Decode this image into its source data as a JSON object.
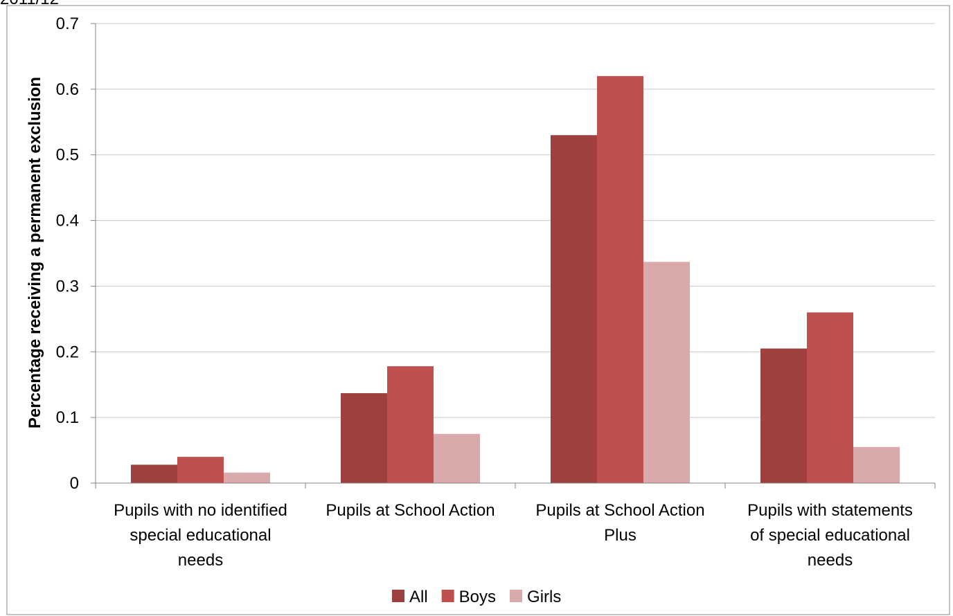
{
  "chart_data": {
    "type": "bar",
    "title": "2011/12",
    "xlabel": "",
    "ylabel": "Percentage receiving a permanent exclusion",
    "ylim": [
      0,
      0.7
    ],
    "yticks": [
      0,
      0.1,
      0.2,
      0.3,
      0.4,
      0.5,
      0.6,
      0.7
    ],
    "ytick_labels": [
      "0",
      "0.1",
      "0.2",
      "0.3",
      "0.4",
      "0.5",
      "0.6",
      "0.7"
    ],
    "grid": true,
    "legend_position": "bottom",
    "categories": [
      [
        "Pupils with no identified",
        "special educational",
        "needs"
      ],
      [
        "Pupils at School Action"
      ],
      [
        "Pupils at School Action",
        "Plus"
      ],
      [
        "Pupils with statements",
        "of special educational",
        "needs"
      ]
    ],
    "series": [
      {
        "name": "All",
        "color": "#9e413e",
        "values": [
          0.028,
          0.137,
          0.53,
          0.205
        ]
      },
      {
        "name": "Boys",
        "color": "#c0504d",
        "values": [
          0.04,
          0.178,
          0.62,
          0.26
        ]
      },
      {
        "name": "Girls",
        "color": "#d9aaa9",
        "values": [
          0.016,
          0.075,
          0.337,
          0.055
        ]
      }
    ]
  }
}
